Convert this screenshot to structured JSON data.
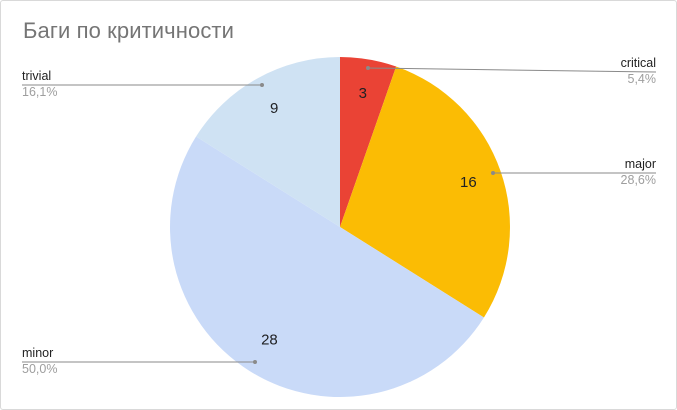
{
  "chart_data": {
    "type": "pie",
    "title": "Баги по критичности",
    "slices": [
      {
        "name": "critical",
        "value": 3,
        "percent_label": "5,4%",
        "color": "#ea4335"
      },
      {
        "name": "major",
        "value": 16,
        "percent_label": "28,6%",
        "color": "#fbbc04"
      },
      {
        "name": "minor",
        "value": 28,
        "percent_label": "50,0%",
        "color": "#c9daf8"
      },
      {
        "name": "trivial",
        "value": 9,
        "percent_label": "16,1%",
        "color": "#cfe2f3"
      }
    ],
    "start_angle": "12 o'clock",
    "direction": "clockwise",
    "legend": "labeled"
  }
}
